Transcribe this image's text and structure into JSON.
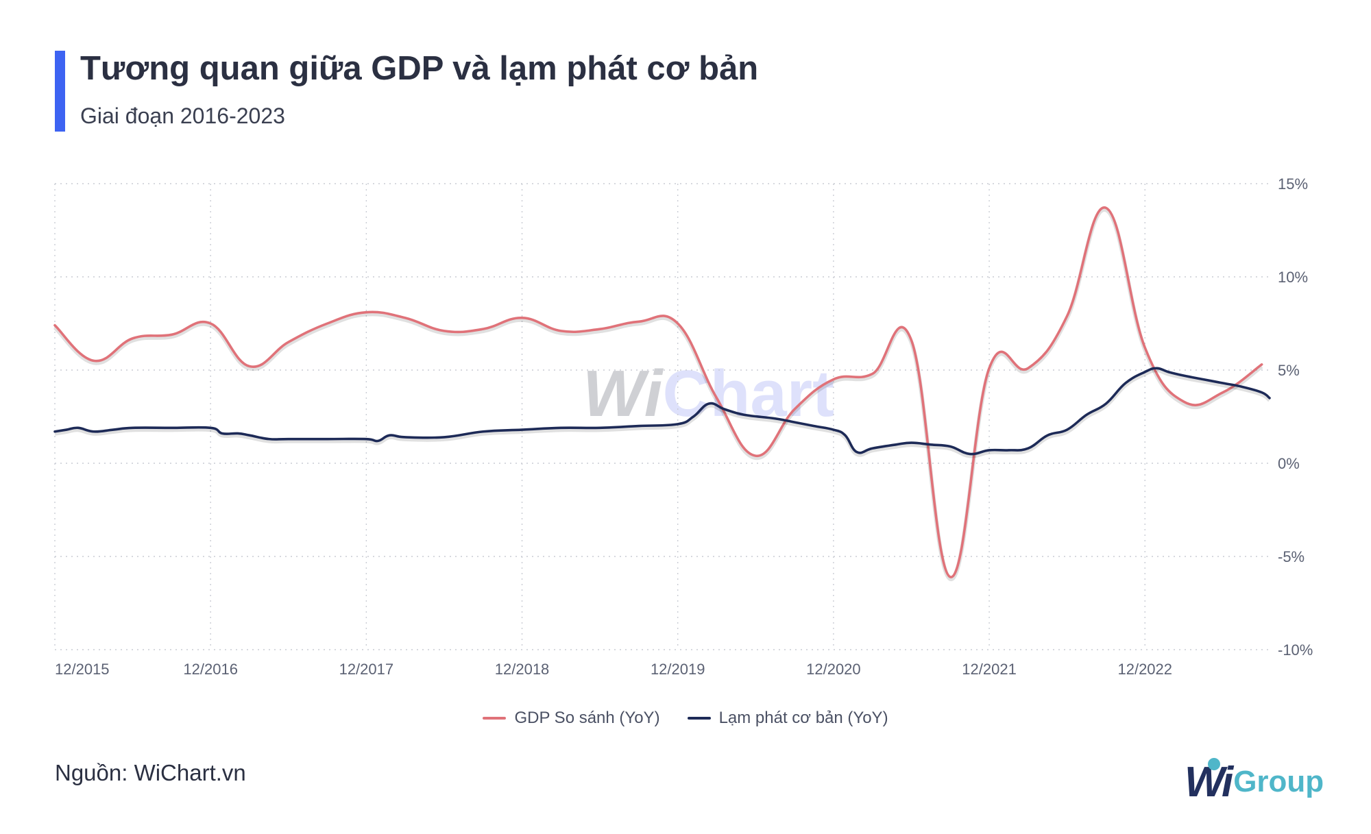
{
  "title": "Tương quan giữa GDP và lạm phát cơ bản",
  "subtitle": "Giai đoạn 2016-2023",
  "source": "Nguồn: WiChart.vn",
  "logo": {
    "wi": "Wi",
    "group": "Group"
  },
  "watermark": {
    "wi": "Wi",
    "chart": "Chart"
  },
  "colors": {
    "gdp": "#e07279",
    "core_inflation": "#1d2a57",
    "accent": "#3d63f2",
    "logo_teal": "#4fb6c9"
  },
  "chart_data": {
    "type": "line",
    "title": "Tương quan giữa GDP và lạm phát cơ bản",
    "xlabel": "",
    "ylabel": "",
    "ylim": [
      -10,
      15
    ],
    "xlim": [
      0,
      31.2
    ],
    "y_ticks": [
      15,
      10,
      5,
      0,
      -5,
      -10
    ],
    "y_tick_labels": [
      "15%",
      "10%",
      "5%",
      "0%",
      "-5%",
      "-10%"
    ],
    "x_ticks": [
      0,
      4,
      8,
      12,
      16,
      20,
      24,
      28
    ],
    "x_tick_labels": [
      "12/2015",
      "12/2016",
      "12/2017",
      "12/2018",
      "12/2019",
      "12/2020",
      "12/2021",
      "12/2022"
    ],
    "x_unit": "quarters since 12/2015",
    "grid": true,
    "legend_position": "bottom-center",
    "series": [
      {
        "name": "GDP So sánh (YoY)",
        "color": "#e07279",
        "x": [
          0,
          1,
          2,
          3,
          4,
          5,
          6,
          7,
          8,
          9,
          10,
          11,
          12,
          13,
          14,
          15,
          16,
          17,
          18,
          19,
          20,
          21,
          22,
          23,
          24,
          25,
          26,
          27,
          28,
          29,
          30,
          31
        ],
        "values": [
          7.4,
          5.5,
          6.7,
          6.9,
          7.5,
          5.2,
          6.5,
          7.5,
          8.1,
          7.8,
          7.1,
          7.2,
          7.8,
          7.1,
          7.2,
          7.6,
          7.5,
          3.5,
          0.4,
          2.9,
          4.5,
          4.8,
          6.6,
          -6.1,
          5.1,
          5.1,
          7.9,
          13.7,
          6.2,
          3.3,
          3.8,
          5.3
        ]
      },
      {
        "name": "Lạm phát cơ bản (YoY)",
        "color": "#1d2a57",
        "x": [
          0,
          0.3,
          0.6,
          1,
          1.5,
          2,
          3,
          4,
          4.3,
          4.7,
          5,
          5.5,
          6,
          7,
          8,
          8.3,
          8.6,
          9,
          10,
          11,
          12,
          13,
          14,
          15,
          16,
          16.4,
          16.8,
          17.2,
          17.7,
          18.5,
          19,
          19.5,
          20,
          20.3,
          20.6,
          21,
          21.6,
          22,
          22.5,
          23,
          23.5,
          24,
          24.5,
          25,
          25.5,
          26,
          26.5,
          27,
          27.5,
          28,
          28.3,
          28.6,
          29,
          29.5,
          30,
          30.5,
          31,
          31.2
        ],
        "values": [
          1.7,
          1.8,
          1.9,
          1.7,
          1.8,
          1.9,
          1.9,
          1.9,
          1.6,
          1.6,
          1.5,
          1.3,
          1.3,
          1.3,
          1.3,
          1.2,
          1.5,
          1.4,
          1.4,
          1.7,
          1.8,
          1.9,
          1.9,
          2.0,
          2.1,
          2.5,
          3.2,
          2.9,
          2.6,
          2.4,
          2.2,
          2.0,
          1.8,
          1.5,
          0.6,
          0.8,
          1.0,
          1.1,
          1.0,
          0.9,
          0.5,
          0.7,
          0.7,
          0.8,
          1.5,
          1.8,
          2.6,
          3.2,
          4.3,
          4.9,
          5.1,
          4.9,
          4.7,
          4.5,
          4.3,
          4.1,
          3.8,
          3.5
        ]
      }
    ]
  }
}
